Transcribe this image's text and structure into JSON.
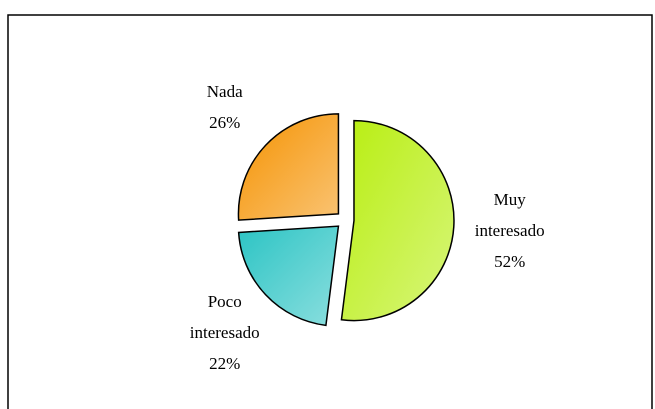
{
  "chart_data": {
    "type": "pie",
    "categories": [
      "Muy interesado",
      "Poco interesado",
      "Nada"
    ],
    "values": [
      52,
      22,
      26
    ],
    "value_labels": [
      "52%",
      "22%",
      "26%"
    ],
    "colors": [
      "#b8ee10",
      "#2cc4c4",
      "#f59200"
    ]
  }
}
